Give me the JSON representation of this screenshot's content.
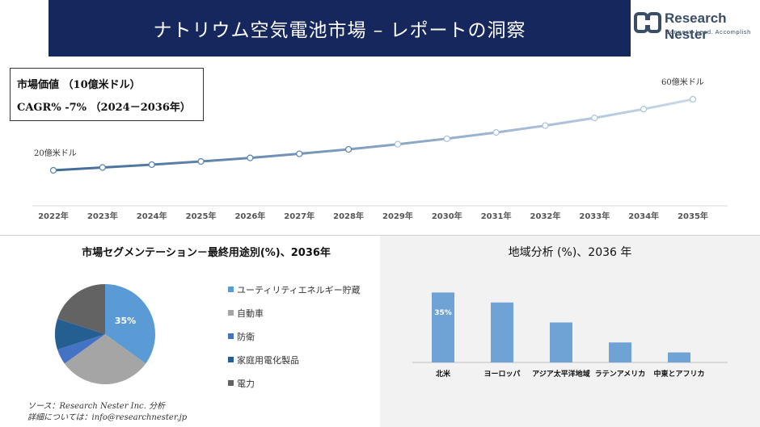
{
  "header": {
    "title": "ナトリウム空気電池市場 – レポートの洞察"
  },
  "logo": {
    "name": "Research Nester",
    "tagline": "Connect. Lead. Accomplish"
  },
  "kpi": {
    "market_value": "市場価値 （10億米ドル）",
    "cagr": "CAGR% -7% （2024－2036年）"
  },
  "colors": {
    "banner": "#16275e",
    "line_start": "#3f6a97",
    "line_end": "#c9d9ea",
    "bar": "#6fa3d6",
    "panel_bg": "#f2f2f2"
  },
  "chart_data": [
    {
      "type": "line",
      "title": "",
      "x": [
        "2022年",
        "2023年",
        "2024年",
        "2025年",
        "2026年",
        "2027年",
        "2028年",
        "2029年",
        "2030年",
        "2031年",
        "2032年",
        "2033年",
        "2034年",
        "2035年"
      ],
      "annotations": {
        "start": "20億米ドル",
        "end": "60億米ドル"
      },
      "series": [
        {
          "values": [
            20,
            21.6,
            23.2,
            25,
            27,
            29.3,
            31.8,
            34.7,
            37.8,
            41.3,
            45.2,
            49.5,
            54.5,
            60
          ]
        }
      ],
      "ylim": [
        0,
        75
      ],
      "grid": false
    },
    {
      "type": "pie",
      "title": "市場セグメンテーション－最終用途別(%)、2036年",
      "labels": [
        "ユーティリティエネルギー貯蔵",
        "自動車",
        "防衛",
        "家庭用電化製品",
        "電力"
      ],
      "values": [
        35,
        30,
        5,
        10,
        20
      ],
      "data_labels": [
        "35%",
        "",
        "",
        "",
        ""
      ],
      "colors": [
        "#5b9bd5",
        "#a5a5a5",
        "#4472c4",
        "#255e91",
        "#636363"
      ],
      "legend": "right"
    },
    {
      "type": "bar",
      "title": "地域分析 (%)、2036 年",
      "categories": [
        "北米",
        "ヨーロッパ",
        "アジア太平洋地域",
        "ラテンアメリカ",
        "中東とアフリカ"
      ],
      "values": [
        35,
        30,
        20,
        10,
        5
      ],
      "data_labels": [
        "35%",
        "",
        "",
        "",
        ""
      ],
      "ylim": [
        0,
        40
      ],
      "grid": false
    }
  ],
  "source": {
    "line1": "ソース：Research Nester Inc. 分析",
    "line2": "詳細については：info@researchnester.jp"
  }
}
